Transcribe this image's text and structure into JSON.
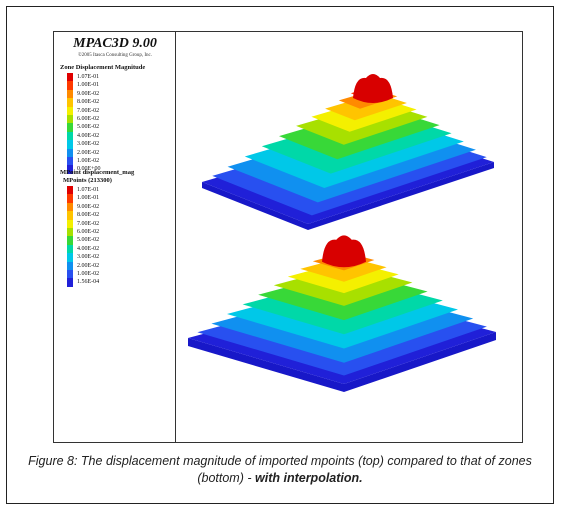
{
  "app": {
    "title": "MPAC3D 9.00",
    "copyright": "©2005 Itasca Consulting Group, Inc."
  },
  "legend_zone": {
    "title": "Zone Displacement Magnitude",
    "labels": [
      "1.07E-01",
      "1.00E-01",
      "9.00E-02",
      "8.00E-02",
      "7.00E-02",
      "6.00E-02",
      "5.00E-02",
      "4.00E-02",
      "3.00E-02",
      "2.00E-02",
      "1.00E-02",
      "0.00E+00"
    ]
  },
  "legend_mpoint": {
    "title": "MPoint displacement_mag",
    "subtitle": "MPoints (213300)",
    "labels": [
      "1.07E-01",
      "1.00E-01",
      "9.00E-02",
      "8.00E-02",
      "7.00E-02",
      "6.00E-02",
      "5.00E-02",
      "4.00E-02",
      "3.00E-02",
      "2.00E-02",
      "1.00E-02",
      "1.56E-04"
    ]
  },
  "colors": {
    "scale": [
      "#e00000",
      "#ff3a00",
      "#ff8a00",
      "#ffc400",
      "#f4f000",
      "#a8e000",
      "#38d838",
      "#00d8a8",
      "#00c8e8",
      "#1090f0",
      "#2850f0",
      "#2020d8"
    ]
  },
  "caption": {
    "main": "Figure 8: The displacement magnitude of imported mpoints (top) compared to that of zones (bottom) - ",
    "bold": "with interpolation."
  }
}
